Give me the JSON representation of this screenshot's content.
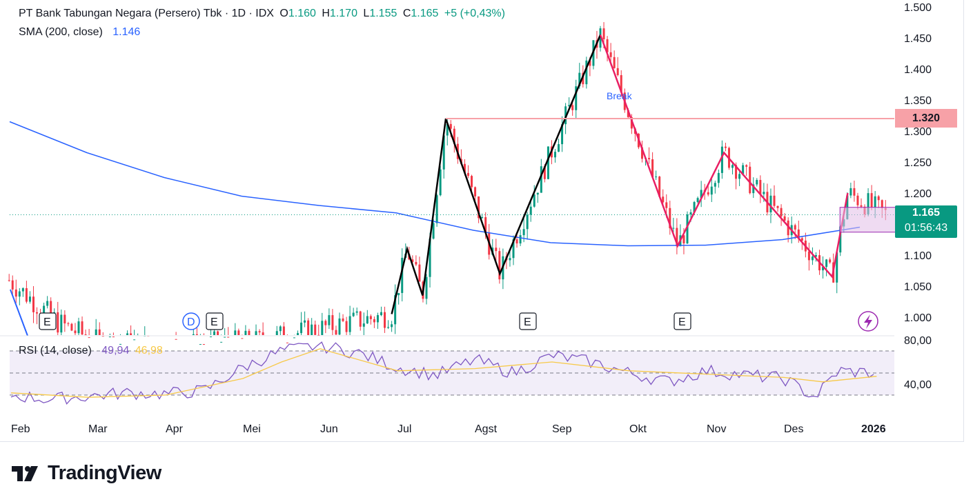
{
  "header": {
    "title": "PT Bank Tabungan Negara (Persero) Tbk · 1D · IDX",
    "o_label": "O",
    "o_value": "1.160",
    "h_label": "H",
    "h_value": "1.170",
    "l_label": "L",
    "l_value": "1.155",
    "c_label": "C",
    "c_value": "1.165",
    "change": "+5 (+0,43%)"
  },
  "sma": {
    "label": "SMA (200, close)",
    "value": "1.146"
  },
  "rsi": {
    "label": "RSI (14, close)",
    "value": "49,94",
    "ma_value": "46,98"
  },
  "price_tags": {
    "level": "1.320",
    "last": "1.165",
    "countdown": "01:56:43"
  },
  "annotations": {
    "break": "Break"
  },
  "event_markers": [
    "E",
    "D",
    "E",
    "E",
    "E"
  ],
  "branding": {
    "name": "TradingView"
  },
  "colors": {
    "up": "#089981",
    "down": "#f23645",
    "sma": "#2962ff",
    "rsi": "#7e57c2",
    "rsi_ma": "#f7c948",
    "pattern_black": "#000000",
    "pattern_pink": "#e91e63",
    "level_line": "#f7a1a7",
    "range_box": "#e1bee7"
  },
  "chart_data": {
    "type": "candlestick",
    "x_ticks": [
      "Feb",
      "Mar",
      "Apr",
      "Mei",
      "Jun",
      "Jul",
      "Agst",
      "Sep",
      "Okt",
      "Nov",
      "Des",
      "2026"
    ],
    "y_ticks": [
      "1.500",
      "1.450",
      "1.400",
      "1.350",
      "1.300",
      "1.250",
      "1.200",
      "1.150",
      "1.100",
      "1.050",
      "1.000"
    ],
    "ylim": [
      0.975,
      1.5
    ],
    "rsi_ticks": [
      "80,00",
      "40,00"
    ],
    "rsi_levels": [
      70,
      50,
      30
    ],
    "resistance_level": 1320,
    "last_price": 1165,
    "pattern_black": [
      [
        4.8,
        1005
      ],
      [
        5.0,
        1110
      ],
      [
        5.2,
        1035
      ],
      [
        5.5,
        1320
      ],
      [
        6.2,
        1070
      ],
      [
        7.5,
        1455
      ]
    ],
    "pattern_pink": [
      [
        7.5,
        1455
      ],
      [
        8.5,
        1115
      ],
      [
        9.1,
        1265
      ],
      [
        10.5,
        1065
      ],
      [
        10.7,
        1200
      ]
    ],
    "range_box": {
      "from": 10.6,
      "to": 11.4,
      "top": 1177,
      "bottom": 1137
    },
    "sma200": [
      [
        0,
        1315
      ],
      [
        1,
        1265
      ],
      [
        2,
        1225
      ],
      [
        3,
        1195
      ],
      [
        4,
        1180
      ],
      [
        5,
        1168
      ],
      [
        6,
        1140
      ],
      [
        7,
        1120
      ],
      [
        8,
        1115
      ],
      [
        9,
        1116
      ],
      [
        10,
        1125
      ],
      [
        11,
        1145
      ]
    ],
    "rsi_series": [
      [
        0,
        30
      ],
      [
        0.5,
        26
      ],
      [
        1,
        29
      ],
      [
        1.5,
        32
      ],
      [
        2,
        31
      ],
      [
        2.5,
        34
      ],
      [
        3,
        55
      ],
      [
        3.5,
        70
      ],
      [
        4,
        75
      ],
      [
        4.5,
        68
      ],
      [
        5,
        55
      ],
      [
        5.5,
        48
      ],
      [
        6,
        62
      ],
      [
        6.5,
        50
      ],
      [
        7,
        66
      ],
      [
        7.5,
        60
      ],
      [
        8,
        50
      ],
      [
        8.5,
        42
      ],
      [
        9,
        52
      ],
      [
        9.5,
        48
      ],
      [
        10,
        45
      ],
      [
        10.4,
        28
      ],
      [
        10.7,
        52
      ],
      [
        11.2,
        50
      ]
    ],
    "rsi_ma": [
      [
        0,
        32
      ],
      [
        1,
        28
      ],
      [
        2,
        30
      ],
      [
        3,
        45
      ],
      [
        3.5,
        60
      ],
      [
        4,
        72
      ],
      [
        5,
        52
      ],
      [
        6,
        54
      ],
      [
        7,
        60
      ],
      [
        8,
        52
      ],
      [
        9,
        49
      ],
      [
        10,
        46
      ],
      [
        10.5,
        42
      ],
      [
        11.2,
        47
      ]
    ]
  }
}
